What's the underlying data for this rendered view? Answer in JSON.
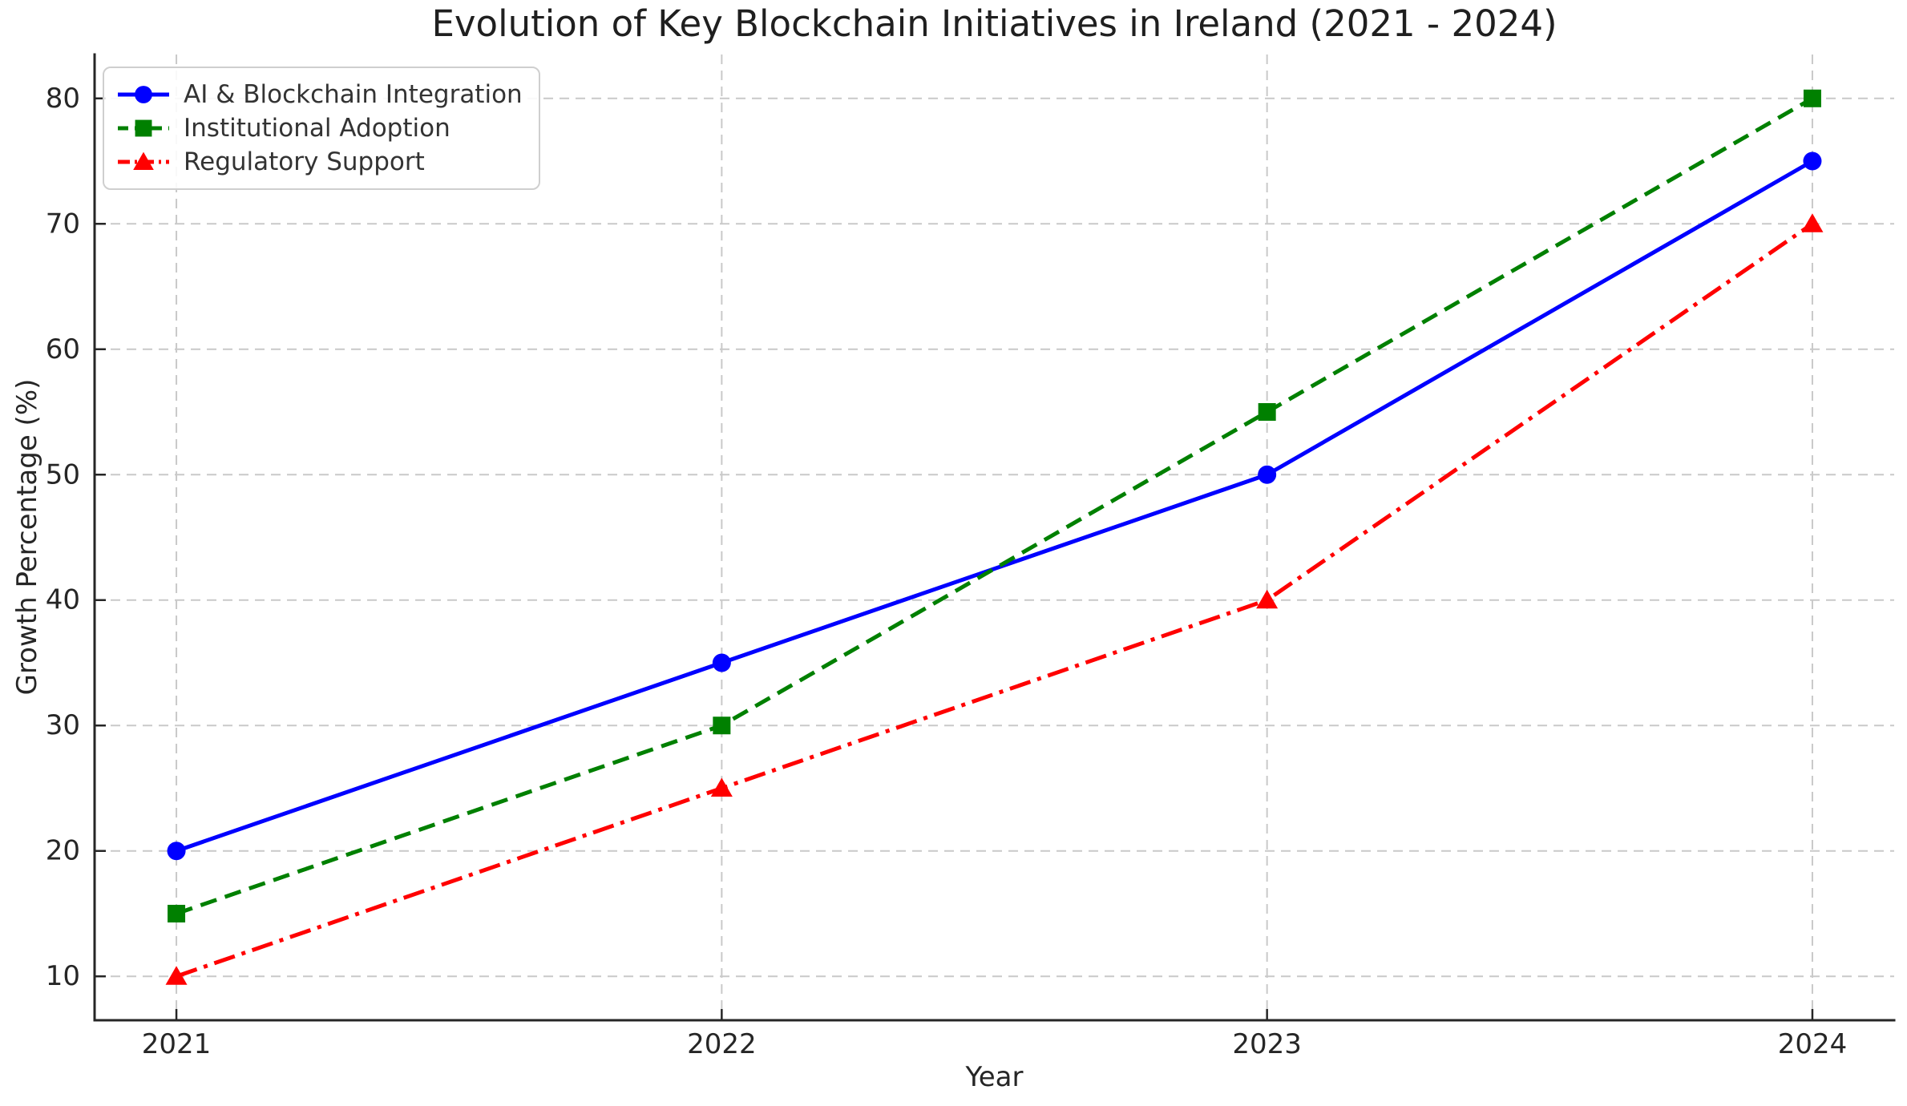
{
  "page": {
    "background": "#ffffff"
  },
  "colors": {
    "grid": "#c9c9c9",
    "spine": "#262626",
    "text": "#262626",
    "title_text": "#1f1f1f",
    "legend_text": "#333333",
    "legend_border": "#cfcfcf",
    "series_blue": "#0000ff",
    "series_green": "#008000",
    "series_red": "#ff0000"
  },
  "chart_data": {
    "type": "line",
    "title": "Evolution of Key Blockchain Initiatives in Ireland (2021 - 2024)",
    "xlabel": "Year",
    "ylabel": "Growth Percentage (%)",
    "categories": [
      2021,
      2022,
      2023,
      2024
    ],
    "x_tick_labels": [
      "2021",
      "2022",
      "2023",
      "2024"
    ],
    "y_ticks": [
      10,
      20,
      30,
      40,
      50,
      60,
      70,
      80
    ],
    "xlim": [
      2020.85,
      2024.15
    ],
    "ylim": [
      6.5,
      83.5
    ],
    "grid": true,
    "grid_style": "dashed",
    "legend_position": "upper-left",
    "series": [
      {
        "name": "AI & Blockchain Integration",
        "values": [
          20,
          35,
          50,
          75
        ],
        "color": "#0000ff",
        "line_style": "solid",
        "marker": "circle"
      },
      {
        "name": "Institutional Adoption",
        "values": [
          15,
          30,
          55,
          80
        ],
        "color": "#008000",
        "line_style": "dashed",
        "marker": "square"
      },
      {
        "name": "Regulatory Support",
        "values": [
          10,
          25,
          40,
          70
        ],
        "color": "#ff0000",
        "line_style": "dashdot",
        "marker": "triangle"
      }
    ]
  }
}
